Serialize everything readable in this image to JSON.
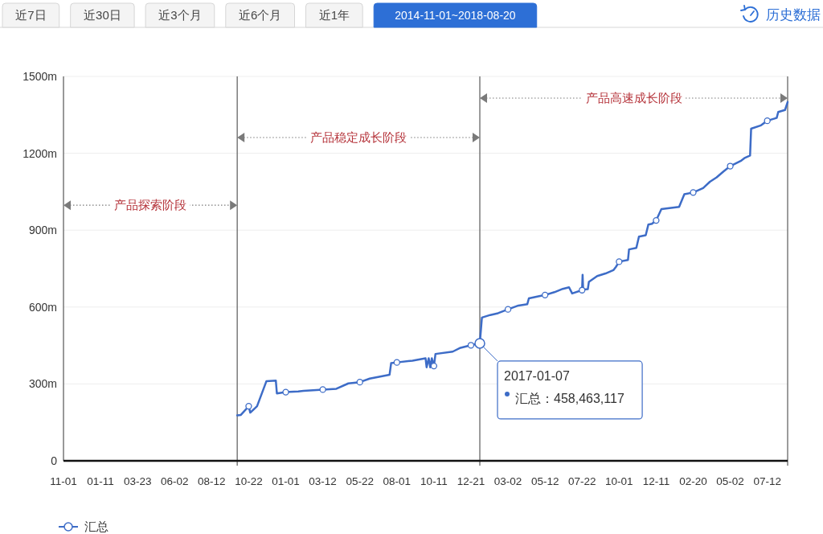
{
  "chart_data": {
    "type": "line",
    "annotations": [
      "近7日",
      "近30日",
      "近3个月",
      "近6个月",
      "近1年",
      "2014-11-01~2018-08-20",
      "历史数据",
      "产品探索阶段",
      "产品稳定成长阶段",
      "产品高速成长阶段",
      {
        "text": "2017-01-07",
        "x": "2017-01-07",
        "y": 458.463117
      },
      "汇总：458,463,117"
    ],
    "x": [
      "2015-09-30",
      "2015-10-07",
      "2015-10-22",
      "2015-10-25",
      "2015-11-07",
      "2015-11-25",
      "2015-12-13",
      "2015-12-15",
      "2016-01-01",
      "2016-01-25",
      "2016-02-04",
      "2016-03-12",
      "2016-04-07",
      "2016-04-30",
      "2016-05-22",
      "2016-06-10",
      "2016-06-28",
      "2016-07-18",
      "2016-07-21",
      "2016-08-01",
      "2016-08-31",
      "2016-09-25",
      "2016-09-27",
      "2016-10-01",
      "2016-10-04",
      "2016-10-07",
      "2016-10-11",
      "2016-10-14",
      "2016-11-16",
      "2016-12-01",
      "2016-12-21",
      "2017-01-07",
      "2017-01-11",
      "2017-01-27",
      "2017-02-11",
      "2017-03-02",
      "2017-03-22",
      "2017-04-08",
      "2017-04-11",
      "2017-04-29",
      "2017-05-12",
      "2017-05-30",
      "2017-06-15",
      "2017-06-27",
      "2017-07-03",
      "2017-07-22",
      "2017-07-23",
      "2017-07-24",
      "2017-08-02",
      "2017-08-04",
      "2017-08-20",
      "2017-09-05",
      "2017-09-20",
      "2017-09-25",
      "2017-10-01",
      "2017-10-18",
      "2017-10-20",
      "2017-11-03",
      "2017-11-08",
      "2017-11-21",
      "2017-11-26",
      "2017-12-03",
      "2017-12-11",
      "2017-12-21",
      "2018-01-24",
      "2018-02-03",
      "2018-02-20",
      "2018-03-11",
      "2018-03-24",
      "2018-04-06",
      "2018-04-19",
      "2018-05-02",
      "2018-05-22",
      "2018-05-29",
      "2018-06-09",
      "2018-06-11",
      "2018-06-30",
      "2018-07-12",
      "2018-07-30",
      "2018-08-02",
      "2018-08-15",
      "2018-08-20"
    ],
    "series": [
      {
        "name": "汇总",
        "color": "#3d6cc7",
        "values": [
          177,
          179,
          213,
          188,
          213,
          311,
          313,
          263,
          268,
          271,
          273,
          278,
          281,
          302,
          307,
          321,
          328,
          336,
          381,
          384,
          391,
          400,
          365,
          400,
          365,
          400,
          370,
          417,
          426,
          441,
          451,
          458.463117,
          559,
          569,
          576,
          591,
          606,
          611,
          634,
          642,
          647,
          658,
          671,
          677,
          653,
          666,
          726,
          668,
          670,
          698,
          721,
          731,
          744,
          757,
          777,
          784,
          825,
          831,
          875,
          880,
          922,
          925,
          938,
          982,
          991,
          1040,
          1047,
          1064,
          1089,
          1106,
          1129,
          1150,
          1170,
          1181,
          1191,
          1296,
          1309,
          1327,
          1338,
          1361,
          1369,
          1400
        ]
      },
      {
        "type": "scatter",
        "color": "#3d6cc7",
        "marker": "circle",
        "x": [
          "2015-10-22",
          "2016-01-01",
          "2016-03-12",
          "2016-05-22",
          "2016-08-01",
          "2016-10-11",
          "2016-12-21",
          "2017-03-02",
          "2017-05-12",
          "2017-07-22",
          "2017-10-01",
          "2017-12-11",
          "2018-02-20",
          "2018-05-02",
          "2018-07-12"
        ],
        "values": [
          213,
          268,
          278,
          307,
          384,
          370,
          451,
          591,
          647,
          666,
          777,
          938,
          1047,
          1150,
          1327
        ]
      }
    ],
    "xlim": [
      "2014-11-01",
      "2018-08-20"
    ],
    "xticks": [
      {
        "value": "2014-11-01",
        "label": "11-01"
      },
      {
        "value": "2015-01-11",
        "label": "01-11"
      },
      {
        "value": "2015-03-23",
        "label": "03-23"
      },
      {
        "value": "2015-06-02",
        "label": "06-02"
      },
      {
        "value": "2015-08-12",
        "label": "08-12"
      },
      {
        "value": "2015-10-22",
        "label": "10-22"
      },
      {
        "value": "2016-01-01",
        "label": "01-01"
      },
      {
        "value": "2016-03-12",
        "label": "03-12"
      },
      {
        "value": "2016-05-22",
        "label": "05-22"
      },
      {
        "value": "2016-08-01",
        "label": "08-01"
      },
      {
        "value": "2016-10-11",
        "label": "10-11"
      },
      {
        "value": "2016-12-21",
        "label": "12-21"
      },
      {
        "value": "2017-03-02",
        "label": "03-02"
      },
      {
        "value": "2017-05-12",
        "label": "05-12"
      },
      {
        "value": "2017-07-22",
        "label": "07-22"
      },
      {
        "value": "2017-10-01",
        "label": "10-01"
      },
      {
        "value": "2017-12-11",
        "label": "12-11"
      },
      {
        "value": "2018-02-20",
        "label": "02-20"
      },
      {
        "value": "2018-05-02",
        "label": "05-02"
      },
      {
        "value": "2018-07-12",
        "label": "07-12"
      }
    ],
    "ylim": [
      0,
      1500
    ],
    "yticks": [
      0,
      {
        "value": 300,
        "label": "300m"
      },
      {
        "value": 600,
        "label": "600m"
      },
      {
        "value": 900,
        "label": "900m"
      },
      {
        "value": 1200,
        "label": "1200m"
      },
      {
        "value": 1500,
        "label": "1500m"
      }
    ],
    "grid": "y",
    "legend": "bottom left",
    "ref_lines": [
      {
        "axis": "x",
        "value": "2015-09-30",
        "color": "#666666"
      },
      {
        "axis": "x",
        "value": "2017-01-07",
        "color": "#666666"
      },
      {
        "axis": "x",
        "value": "2018-08-20",
        "color": "#666666"
      }
    ]
  }
}
